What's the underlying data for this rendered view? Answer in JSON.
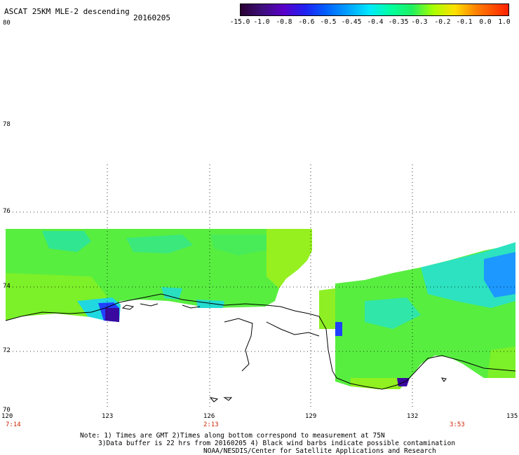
{
  "header": {
    "title": "ASCAT 25KM MLE-2 descending",
    "date": "20160205"
  },
  "colorbar": {
    "labels": [
      "-15.0",
      "-1.0",
      "-0.8",
      "-0.6",
      "-0.5",
      "-0.45",
      "-0.4",
      "-0.35",
      "-0.3",
      "-0.2",
      "-0.1",
      "0.0",
      "1.0"
    ],
    "colors": [
      "#2a0033",
      "#3d0f7a",
      "#5a00c8",
      "#2020f0",
      "#0060ff",
      "#00a0ff",
      "#00e8ff",
      "#00ffa0",
      "#20f060",
      "#a8ff00",
      "#ffe000",
      "#ff8000",
      "#ff2000"
    ]
  },
  "axes": {
    "lat_labels": [
      "80",
      "78",
      "76",
      "74",
      "72",
      "70"
    ],
    "lon_labels": [
      "120",
      "123",
      "126",
      "129",
      "132",
      "135"
    ],
    "time_labels": [
      "7:14",
      "2:13",
      "3:53"
    ]
  },
  "notes": {
    "line1": "Note: 1) Times are GMT 2)Times along bottom correspond to measurement at 75N",
    "line2": "3)Data buffer is 22 hrs from 20160205 4) Black wind barbs indicate possible contamination",
    "line3": "NOAA/NESDIS/Center for Satellite Applications and Research"
  },
  "palette": {
    "green": "#5cf03c",
    "yellowgreen": "#9cf020",
    "cyan": "#20e8c8",
    "blue": "#2060ff",
    "purple": "#3a0aa0"
  }
}
